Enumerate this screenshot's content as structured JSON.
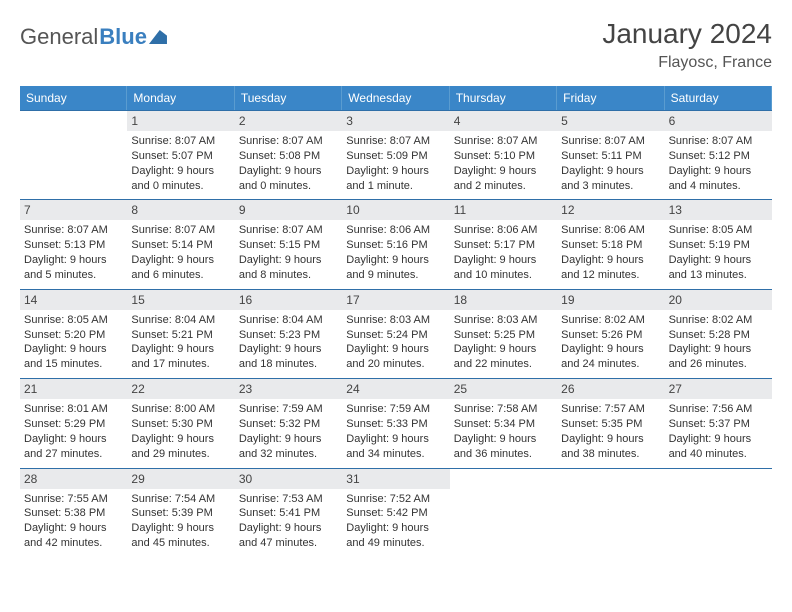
{
  "logo": {
    "word1": "General",
    "word2": "Blue"
  },
  "title": "January 2024",
  "location": "Flayosc, France",
  "colors": {
    "header_bg": "#3a86c8",
    "header_text": "#ffffff",
    "daynum_bg": "#e9eaec",
    "border": "#2f6fa8",
    "text": "#333333",
    "logo_accent": "#3a7fbf"
  },
  "weekdays": [
    "Sunday",
    "Monday",
    "Tuesday",
    "Wednesday",
    "Thursday",
    "Friday",
    "Saturday"
  ],
  "leading_blanks": 1,
  "days": [
    {
      "n": 1,
      "sunrise": "8:07 AM",
      "sunset": "5:07 PM",
      "daylight": "9 hours and 0 minutes."
    },
    {
      "n": 2,
      "sunrise": "8:07 AM",
      "sunset": "5:08 PM",
      "daylight": "9 hours and 0 minutes."
    },
    {
      "n": 3,
      "sunrise": "8:07 AM",
      "sunset": "5:09 PM",
      "daylight": "9 hours and 1 minute."
    },
    {
      "n": 4,
      "sunrise": "8:07 AM",
      "sunset": "5:10 PM",
      "daylight": "9 hours and 2 minutes."
    },
    {
      "n": 5,
      "sunrise": "8:07 AM",
      "sunset": "5:11 PM",
      "daylight": "9 hours and 3 minutes."
    },
    {
      "n": 6,
      "sunrise": "8:07 AM",
      "sunset": "5:12 PM",
      "daylight": "9 hours and 4 minutes."
    },
    {
      "n": 7,
      "sunrise": "8:07 AM",
      "sunset": "5:13 PM",
      "daylight": "9 hours and 5 minutes."
    },
    {
      "n": 8,
      "sunrise": "8:07 AM",
      "sunset": "5:14 PM",
      "daylight": "9 hours and 6 minutes."
    },
    {
      "n": 9,
      "sunrise": "8:07 AM",
      "sunset": "5:15 PM",
      "daylight": "9 hours and 8 minutes."
    },
    {
      "n": 10,
      "sunrise": "8:06 AM",
      "sunset": "5:16 PM",
      "daylight": "9 hours and 9 minutes."
    },
    {
      "n": 11,
      "sunrise": "8:06 AM",
      "sunset": "5:17 PM",
      "daylight": "9 hours and 10 minutes."
    },
    {
      "n": 12,
      "sunrise": "8:06 AM",
      "sunset": "5:18 PM",
      "daylight": "9 hours and 12 minutes."
    },
    {
      "n": 13,
      "sunrise": "8:05 AM",
      "sunset": "5:19 PM",
      "daylight": "9 hours and 13 minutes."
    },
    {
      "n": 14,
      "sunrise": "8:05 AM",
      "sunset": "5:20 PM",
      "daylight": "9 hours and 15 minutes."
    },
    {
      "n": 15,
      "sunrise": "8:04 AM",
      "sunset": "5:21 PM",
      "daylight": "9 hours and 17 minutes."
    },
    {
      "n": 16,
      "sunrise": "8:04 AM",
      "sunset": "5:23 PM",
      "daylight": "9 hours and 18 minutes."
    },
    {
      "n": 17,
      "sunrise": "8:03 AM",
      "sunset": "5:24 PM",
      "daylight": "9 hours and 20 minutes."
    },
    {
      "n": 18,
      "sunrise": "8:03 AM",
      "sunset": "5:25 PM",
      "daylight": "9 hours and 22 minutes."
    },
    {
      "n": 19,
      "sunrise": "8:02 AM",
      "sunset": "5:26 PM",
      "daylight": "9 hours and 24 minutes."
    },
    {
      "n": 20,
      "sunrise": "8:02 AM",
      "sunset": "5:28 PM",
      "daylight": "9 hours and 26 minutes."
    },
    {
      "n": 21,
      "sunrise": "8:01 AM",
      "sunset": "5:29 PM",
      "daylight": "9 hours and 27 minutes."
    },
    {
      "n": 22,
      "sunrise": "8:00 AM",
      "sunset": "5:30 PM",
      "daylight": "9 hours and 29 minutes."
    },
    {
      "n": 23,
      "sunrise": "7:59 AM",
      "sunset": "5:32 PM",
      "daylight": "9 hours and 32 minutes."
    },
    {
      "n": 24,
      "sunrise": "7:59 AM",
      "sunset": "5:33 PM",
      "daylight": "9 hours and 34 minutes."
    },
    {
      "n": 25,
      "sunrise": "7:58 AM",
      "sunset": "5:34 PM",
      "daylight": "9 hours and 36 minutes."
    },
    {
      "n": 26,
      "sunrise": "7:57 AM",
      "sunset": "5:35 PM",
      "daylight": "9 hours and 38 minutes."
    },
    {
      "n": 27,
      "sunrise": "7:56 AM",
      "sunset": "5:37 PM",
      "daylight": "9 hours and 40 minutes."
    },
    {
      "n": 28,
      "sunrise": "7:55 AM",
      "sunset": "5:38 PM",
      "daylight": "9 hours and 42 minutes."
    },
    {
      "n": 29,
      "sunrise": "7:54 AM",
      "sunset": "5:39 PM",
      "daylight": "9 hours and 45 minutes."
    },
    {
      "n": 30,
      "sunrise": "7:53 AM",
      "sunset": "5:41 PM",
      "daylight": "9 hours and 47 minutes."
    },
    {
      "n": 31,
      "sunrise": "7:52 AM",
      "sunset": "5:42 PM",
      "daylight": "9 hours and 49 minutes."
    }
  ],
  "labels": {
    "sunrise": "Sunrise:",
    "sunset": "Sunset:",
    "daylight": "Daylight:"
  }
}
